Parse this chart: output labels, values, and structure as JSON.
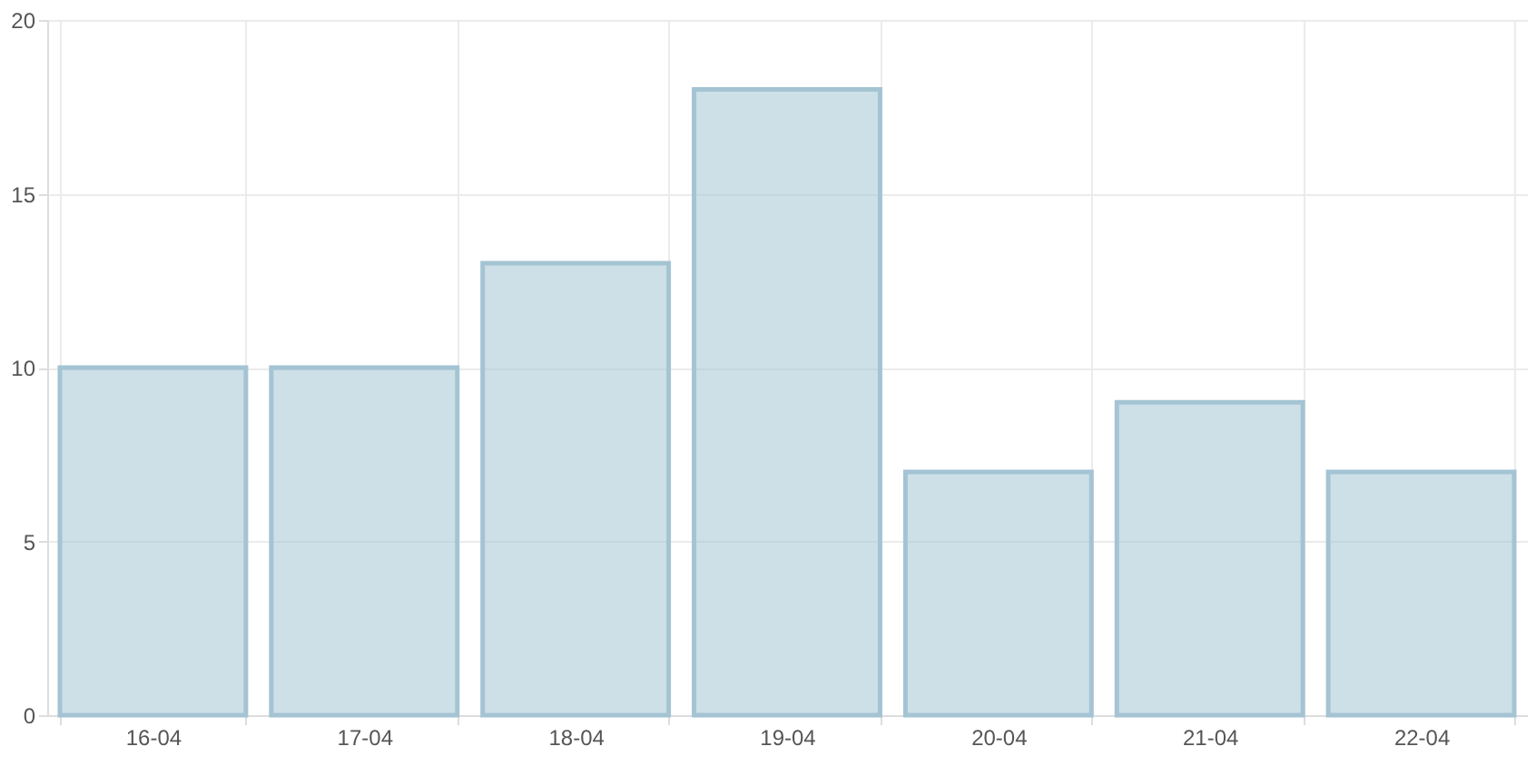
{
  "chart_data": {
    "type": "bar",
    "categories": [
      "16-04",
      "17-04",
      "18-04",
      "19-04",
      "20-04",
      "21-04",
      "22-04"
    ],
    "values": [
      10,
      10,
      13,
      18,
      7,
      9,
      7
    ],
    "color": "#a4c4d3",
    "ylim": [
      0,
      20
    ],
    "yticks": [
      0,
      5,
      10,
      15,
      20
    ],
    "grid": true
  }
}
